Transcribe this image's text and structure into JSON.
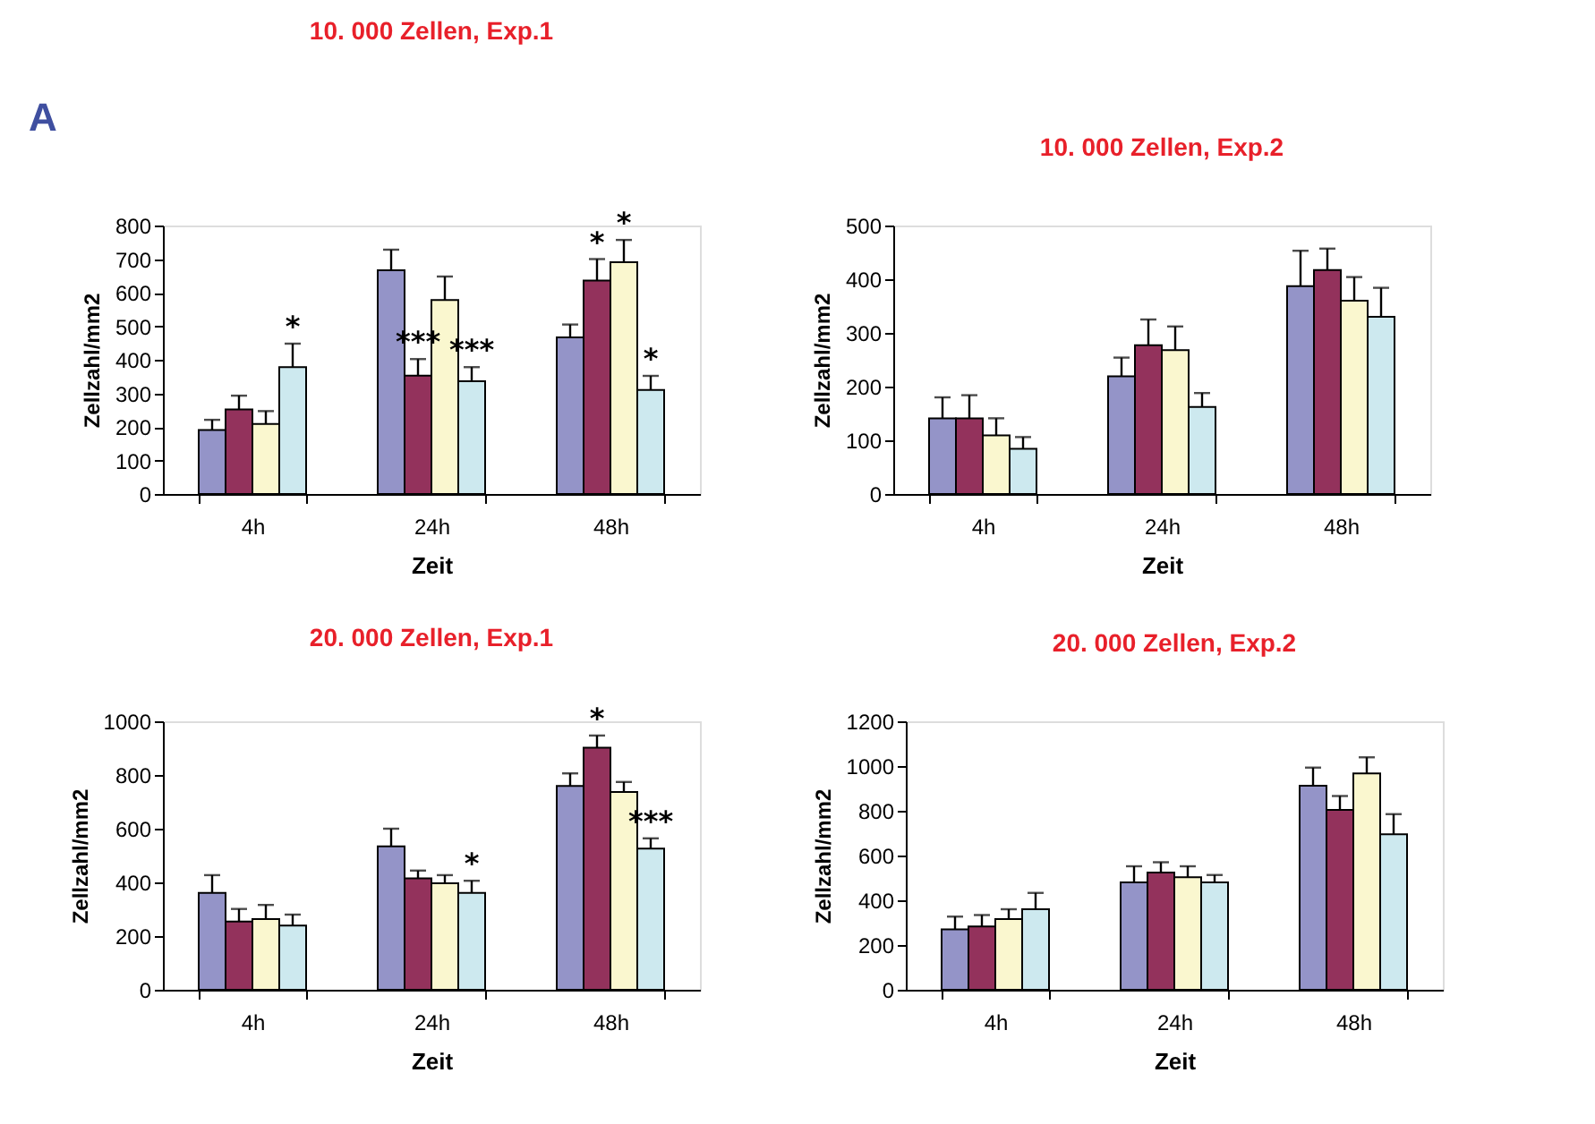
{
  "chart_data": [
    {
      "type": "bar",
      "title": "10. 000 Zellen, Exp.1",
      "xlabel": "Zeit",
      "ylabel": "Zellzahl/mm2",
      "categories": [
        "4h",
        "24h",
        "48h"
      ],
      "ylim": [
        0,
        800
      ],
      "yticks": [
        0,
        100,
        200,
        300,
        400,
        500,
        600,
        700,
        800
      ],
      "grid": false,
      "legend": false,
      "series": [
        {
          "color": "#9494c8",
          "values": [
            191,
            667,
            467
          ],
          "errors": [
            30,
            61,
            38
          ]
        },
        {
          "color": "#93325c",
          "values": [
            252,
            353,
            636
          ],
          "errors": [
            41,
            49,
            64
          ]
        },
        {
          "color": "#faf7cf",
          "values": [
            209,
            578,
            691
          ],
          "errors": [
            38,
            70,
            66
          ]
        },
        {
          "color": "#cde9ef",
          "values": [
            378,
            336,
            310
          ],
          "errors": [
            70,
            42,
            42
          ]
        }
      ],
      "annotations": [
        "A",
        "*",
        "***",
        "***",
        "*",
        "*",
        "*"
      ]
    },
    {
      "type": "bar",
      "title": "10. 000 Zellen, Exp.2",
      "xlabel": "Zeit",
      "ylabel": "Zellzahl/mm2",
      "categories": [
        "4h",
        "24h",
        "48h"
      ],
      "ylim": [
        0,
        500
      ],
      "yticks": [
        0,
        100,
        200,
        300,
        400,
        500
      ],
      "grid": false,
      "legend": false,
      "series": [
        {
          "color": "#9494c8",
          "values": [
            141,
            219,
            387
          ],
          "errors": [
            39,
            35,
            66
          ]
        },
        {
          "color": "#93325c",
          "values": [
            141,
            277,
            417
          ],
          "errors": [
            43,
            48,
            40
          ]
        },
        {
          "color": "#faf7cf",
          "values": [
            109,
            268,
            360
          ],
          "errors": [
            32,
            44,
            44
          ]
        },
        {
          "color": "#cde9ef",
          "values": [
            84,
            162,
            330
          ],
          "errors": [
            22,
            26,
            54
          ]
        }
      ]
    },
    {
      "type": "bar",
      "title": "20. 000 Zellen, Exp.1",
      "xlabel": "Zeit",
      "ylabel": "Zellzahl/mm2",
      "categories": [
        "4h",
        "24h",
        "48h"
      ],
      "ylim": [
        0,
        1000
      ],
      "yticks": [
        0,
        200,
        400,
        600,
        800,
        1000
      ],
      "grid": false,
      "legend": false,
      "series": [
        {
          "color": "#9494c8",
          "values": [
            361,
            534,
            759
          ],
          "errors": [
            66,
            66,
            47
          ]
        },
        {
          "color": "#93325c",
          "values": [
            254,
            415,
            902
          ],
          "errors": [
            47,
            29,
            45
          ]
        },
        {
          "color": "#faf7cf",
          "values": [
            263,
            397,
            737
          ],
          "errors": [
            53,
            30,
            37
          ]
        },
        {
          "color": "#cde9ef",
          "values": [
            239,
            361,
            526
          ],
          "errors": [
            41,
            45,
            38
          ]
        }
      ],
      "annotations": [
        "*",
        "*",
        "***"
      ]
    },
    {
      "type": "bar",
      "title": "20. 000 Zellen, Exp.2",
      "xlabel": "Zeit",
      "ylabel": "Zellzahl/mm2",
      "categories": [
        "4h",
        "24h",
        "48h"
      ],
      "ylim": [
        0,
        1200
      ],
      "yticks": [
        0,
        200,
        400,
        600,
        800,
        1000,
        1200
      ],
      "grid": false,
      "legend": false,
      "series": [
        {
          "color": "#9494c8",
          "values": [
            270,
            480,
            912
          ],
          "errors": [
            57,
            72,
            81
          ]
        },
        {
          "color": "#93325c",
          "values": [
            283,
            524,
            804
          ],
          "errors": [
            51,
            46,
            62
          ]
        },
        {
          "color": "#faf7cf",
          "values": [
            316,
            503,
            967
          ],
          "errors": [
            44,
            49,
            72
          ]
        },
        {
          "color": "#cde9ef",
          "values": [
            360,
            480,
            695
          ],
          "errors": [
            73,
            33,
            90
          ]
        }
      ]
    }
  ]
}
